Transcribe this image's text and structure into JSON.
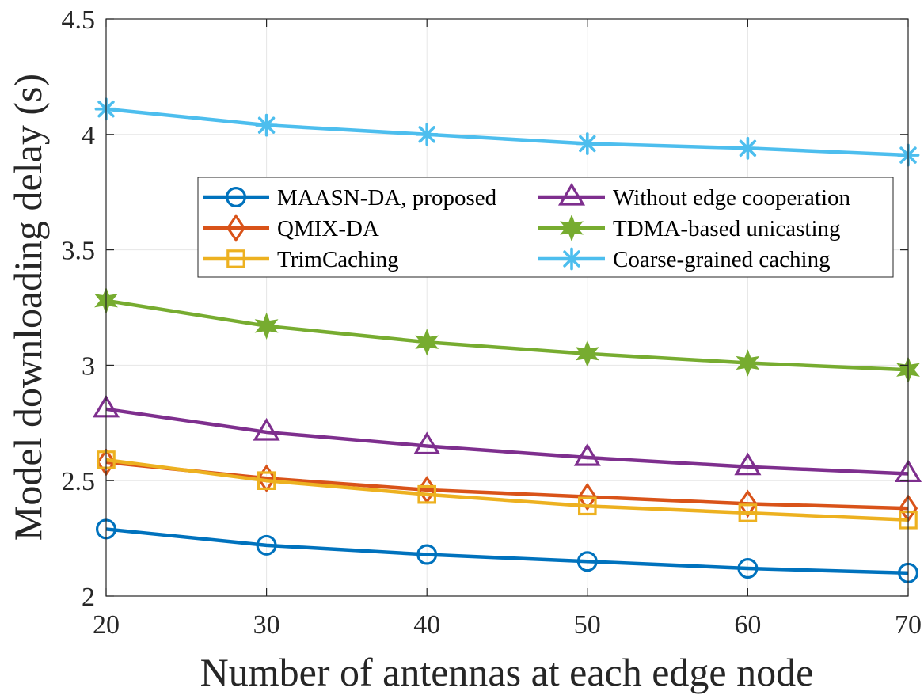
{
  "chart_data": {
    "type": "line",
    "title": "",
    "xlabel": "Number of antennas at each edge node",
    "ylabel": "Model downloading delay (s)",
    "x": [
      20,
      30,
      40,
      50,
      60,
      70
    ],
    "xlim": [
      20,
      70
    ],
    "ylim": [
      2,
      4.5
    ],
    "xticks": [
      "20",
      "30",
      "40",
      "50",
      "60",
      "70"
    ],
    "yticks": [
      "2",
      "2.5",
      "3",
      "3.5",
      "4",
      "4.5"
    ],
    "grid": true,
    "legend_position": "center-right",
    "series": [
      {
        "name": "MAASN-DA, proposed",
        "values": [
          2.29,
          2.22,
          2.18,
          2.15,
          2.12,
          2.1
        ],
        "color": "#0072BD",
        "marker": "circle"
      },
      {
        "name": "QMIX-DA",
        "values": [
          2.58,
          2.51,
          2.46,
          2.43,
          2.4,
          2.38
        ],
        "color": "#D95319",
        "marker": "diamond"
      },
      {
        "name": "TrimCaching",
        "values": [
          2.59,
          2.5,
          2.44,
          2.39,
          2.36,
          2.33
        ],
        "color": "#EDB120",
        "marker": "square"
      },
      {
        "name": "Without edge cooperation",
        "values": [
          2.81,
          2.71,
          2.65,
          2.6,
          2.56,
          2.53
        ],
        "color": "#7E2F8E",
        "marker": "triangle"
      },
      {
        "name": "TDMA-based unicasting",
        "values": [
          3.28,
          3.17,
          3.1,
          3.05,
          3.01,
          2.98
        ],
        "color": "#77AC30",
        "marker": "hexagram"
      },
      {
        "name": "Coarse-grained caching",
        "values": [
          4.11,
          4.04,
          4.0,
          3.96,
          3.94,
          3.91
        ],
        "color": "#4DBEEE",
        "marker": "asterisk"
      }
    ]
  }
}
